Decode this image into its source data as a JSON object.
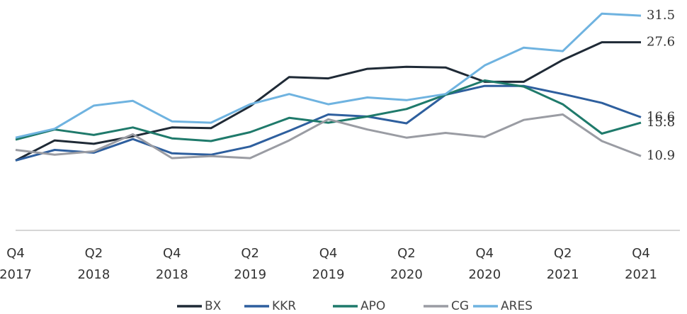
{
  "chart_data": {
    "type": "line",
    "categories": [
      "Q4 2017",
      null,
      "Q2 2018",
      null,
      "Q4 2018",
      null,
      "Q2 2019",
      null,
      "Q4 2019",
      null,
      "Q2 2020",
      null,
      "Q4 2020",
      null,
      "Q2 2021",
      null,
      "Q4 2021"
    ],
    "series": [
      {
        "name": "BX",
        "color": "#1f2a36",
        "values": [
          10.25,
          13.2,
          12.7,
          13.8,
          15.1,
          15.0,
          18.2,
          22.5,
          22.3,
          23.7,
          24.0,
          23.9,
          21.8,
          21.8,
          25.0,
          27.6,
          27.6
        ]
      },
      {
        "name": "KKR",
        "color": "#2e5f9e",
        "values": [
          10.25,
          11.8,
          11.4,
          13.4,
          11.3,
          11.1,
          12.3,
          14.6,
          17.0,
          16.7,
          15.7,
          19.9,
          21.2,
          21.2,
          20.0,
          18.7,
          16.6
        ]
      },
      {
        "name": "APO",
        "color": "#1f7a6b",
        "values": [
          13.3,
          14.8,
          14.0,
          15.1,
          13.5,
          13.1,
          14.4,
          16.5,
          15.8,
          16.7,
          17.8,
          19.9,
          22.0,
          21.1,
          18.5,
          14.2,
          15.8
        ]
      },
      {
        "name": "CG",
        "color": "#9a9ca3",
        "values": [
          11.8,
          11.1,
          11.6,
          14.1,
          10.6,
          10.9,
          10.6,
          13.2,
          16.3,
          14.8,
          13.6,
          14.3,
          13.7,
          16.2,
          17.0,
          13.1,
          10.9
        ]
      },
      {
        "name": "ARES",
        "color": "#6fb3e0",
        "values": [
          13.6,
          14.9,
          18.3,
          19.0,
          16.0,
          15.8,
          18.5,
          20.0,
          18.5,
          19.5,
          19.1,
          20.0,
          24.2,
          26.8,
          26.3,
          31.8,
          31.5
        ]
      }
    ],
    "ylim": [
      0,
      33.8
    ]
  }
}
